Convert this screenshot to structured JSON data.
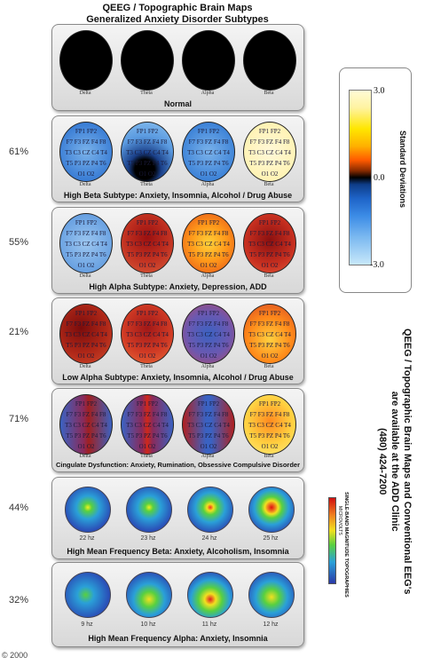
{
  "header": {
    "line1": "QEEG / Topographic Brain Maps",
    "line2": "Generalized Anxiety Disorder Subtypes"
  },
  "band_labels": [
    "Delta",
    "Theta",
    "Alpha",
    "Beta"
  ],
  "electrode_rows": [
    "FP1 FP2",
    "F7 F3 FZ F4 F8",
    "T3 C3 CZ C4 T4",
    "T5 P3 PZ P4 T6",
    "O1 O2"
  ],
  "panels": [
    {
      "percent": "",
      "caption": "Normal"
    },
    {
      "percent": "61%",
      "caption": "High Beta Subtype: Anxiety, Insomnia, Alcohol / Drug Abuse"
    },
    {
      "percent": "55%",
      "caption": "High Alpha Subtype: Anxiety, Depression, ADD"
    },
    {
      "percent": "21%",
      "caption": "Low Alpha Subtype: Anxiety, Insomnia, Alcohol / Drug Abuse"
    },
    {
      "percent": "71%",
      "caption": "Cingulate Dysfunction:  Anxiety, Rumination, Obsessive Compulsive Disorder"
    },
    {
      "percent": "44%",
      "caption": "High Mean Frequency Beta: Anxiety, Alcoholism, Insomnia",
      "hz": [
        "22 hz",
        "23 hz",
        "24 hz",
        "25 hz"
      ]
    },
    {
      "percent": "32%",
      "caption": "High Mean Frequency Alpha: Anxiety, Insomnia",
      "hz": [
        "9 hz",
        "10 hz",
        "11 hz",
        "12 hz"
      ]
    }
  ],
  "legend": {
    "title": "Standard Deviations",
    "top": "3.0",
    "mid": "0.0",
    "bottom": "-3.0"
  },
  "side_text": {
    "line1": "QEEG / Topographic Brain Maps and Conventional EEG's",
    "line2": "are available at the ADD Clinic",
    "line3": "(480) 424-7200"
  },
  "topo_legend": {
    "title": "SINGLE-BAND MAGNITUDE TOPOGRAPHIES",
    "units": "MICROVOLTS"
  },
  "copyright": "© 2000"
}
